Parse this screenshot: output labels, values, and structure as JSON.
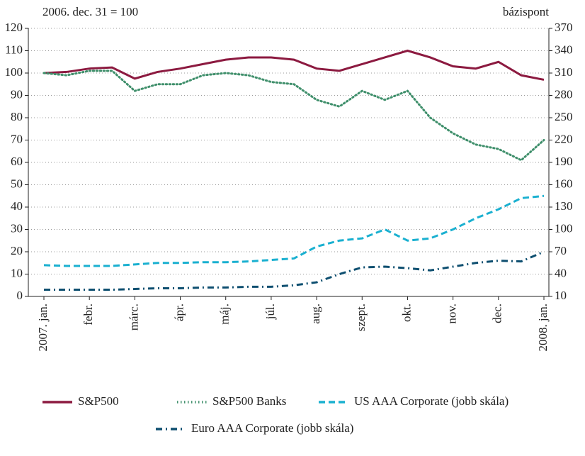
{
  "chart_data": {
    "type": "line",
    "left_axis_label": "2006. dec. 31 = 100",
    "right_axis_label": "bázispont",
    "categories": [
      "2007. jan.",
      null,
      "febr.",
      null,
      "márc.",
      null,
      "ápr.",
      null,
      "máj.",
      null,
      "júl.",
      null,
      "aug.",
      null,
      "szept.",
      null,
      "okt.",
      null,
      "nov.",
      null,
      "dec.",
      null,
      "2008. jan."
    ],
    "ylim": [
      0,
      120
    ],
    "yticks": [
      0,
      10,
      20,
      30,
      40,
      50,
      60,
      70,
      80,
      90,
      100,
      110,
      120
    ],
    "y2lim": [
      10,
      370
    ],
    "y2ticks": [
      10,
      40,
      70,
      100,
      130,
      160,
      190,
      220,
      250,
      280,
      310,
      340,
      370
    ],
    "grid": true,
    "series": [
      {
        "name": "S&P500",
        "color": "#8c1a40",
        "style": "solid",
        "values": [
          100,
          100.5,
          102,
          102.5,
          97.5,
          100.5,
          102,
          104,
          106,
          107,
          107,
          106,
          102,
          101,
          104,
          107,
          110,
          107,
          103,
          102,
          105,
          99,
          97
        ]
      },
      {
        "name": "S&P500 Banks",
        "color": "#3f8f6b",
        "style": "dotted",
        "values": [
          100,
          99,
          101,
          101,
          92,
          95,
          95,
          99,
          100,
          99,
          96,
          95,
          88,
          85,
          92,
          88,
          92,
          80,
          73,
          68,
          66,
          61,
          70
        ]
      },
      {
        "name": "US AAA Corporate (jobb skála)",
        "color": "#1ab0d0",
        "style": "dashed",
        "axis": "y2",
        "values": [
          52,
          51,
          51,
          51,
          53,
          55,
          55,
          56,
          56,
          57,
          59,
          61,
          77,
          85,
          88,
          100,
          85,
          88,
          100,
          115,
          127,
          142,
          145
        ]
      },
      {
        "name": "Euro AAA Corporate (jobb skála)",
        "color": "#0e4f70",
        "style": "dashdot",
        "axis": "y2",
        "values": [
          19,
          19,
          19,
          19,
          20,
          21,
          21,
          22,
          22,
          23,
          23,
          25,
          29,
          40,
          49,
          50,
          48,
          45,
          50,
          55,
          58,
          57,
          70
        ]
      }
    ]
  }
}
